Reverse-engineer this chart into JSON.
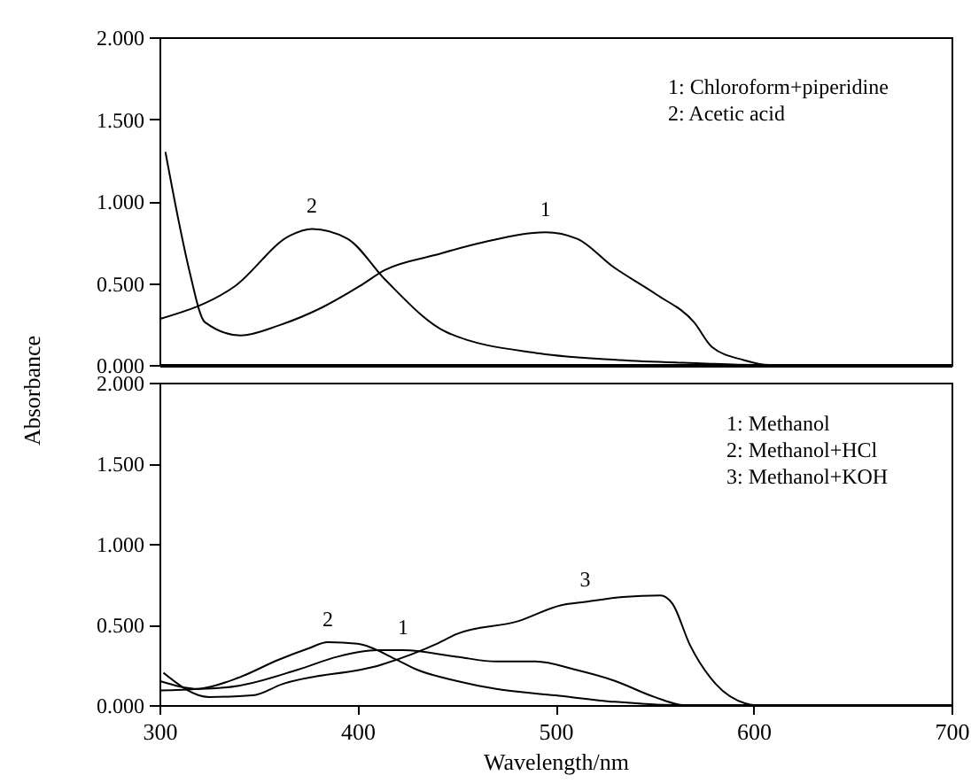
{
  "chart_data": [
    {
      "type": "line",
      "ylabel": "Absorbance",
      "xlim": [
        300,
        700
      ],
      "ylim": [
        0,
        2
      ],
      "yticks": [
        {
          "value": 0,
          "label": "0.000"
        },
        {
          "value": 0.5,
          "label": "0.500"
        },
        {
          "value": 1,
          "label": "1.000"
        },
        {
          "value": 1.5,
          "label": "1.500"
        },
        {
          "value": 2,
          "label": "2.000"
        }
      ],
      "tick_labels": "y",
      "grid": false,
      "series": [
        {
          "color": "#000000",
          "x": [
            303,
            310,
            315,
            323,
            341,
            360,
            382,
            401,
            414,
            439,
            464,
            495,
            511,
            529,
            551,
            570,
            579,
            595,
            608,
            700
          ],
          "values": [
            1.3,
            0.86,
            0.58,
            0.26,
            0.18,
            0.24,
            0.35,
            0.48,
            0.58,
            0.67,
            0.75,
            0.81,
            0.77,
            0.6,
            0.43,
            0.26,
            0.11,
            0.03,
            0,
            0
          ]
        },
        {
          "color": "#000000",
          "x": [
            300,
            338,
            366,
            377,
            395,
            414,
            445,
            492,
            532,
            573,
            600,
            700
          ],
          "values": [
            0.28,
            0.48,
            0.79,
            0.83,
            0.77,
            0.52,
            0.2,
            0.07,
            0.03,
            0.01,
            0,
            0
          ]
        }
      ],
      "annotations": [
        "1: Chloroform+piperidine",
        "2: Acetic acid",
        {
          "text": "2",
          "x": 377,
          "y": 0.83
        },
        {
          "text": "1",
          "x": 495,
          "y": 0.81
        }
      ]
    },
    {
      "type": "line",
      "xlabel": "Wavelength/nm",
      "xlim": [
        300,
        700
      ],
      "ylim": [
        0,
        2
      ],
      "xticks": [
        300,
        400,
        500,
        600,
        700
      ],
      "yticks": [
        {
          "value": 0,
          "label": "0.000"
        },
        {
          "value": 0.5,
          "label": "0.500"
        },
        {
          "value": 1,
          "label": "1.000"
        },
        {
          "value": 1.5,
          "label": "1.500"
        },
        {
          "value": 2,
          "label": "2.000"
        }
      ],
      "grid": false,
      "series": [
        {
          "color": "#000000",
          "x": [
            300,
            320,
            340,
            370,
            390,
            410,
            423,
            450,
            470,
            490,
            510,
            530,
            550,
            565,
            700
          ],
          "values": [
            0.15,
            0.1,
            0.12,
            0.22,
            0.3,
            0.34,
            0.34,
            0.3,
            0.27,
            0.27,
            0.22,
            0.15,
            0.05,
            0,
            0
          ]
        },
        {
          "color": "#000000",
          "x": [
            300,
            320,
            340,
            360,
            375,
            385,
            400,
            420,
            430,
            450,
            470,
            500,
            530,
            560,
            700
          ],
          "values": [
            0.09,
            0.1,
            0.17,
            0.28,
            0.35,
            0.39,
            0.38,
            0.28,
            0.22,
            0.15,
            0.1,
            0.06,
            0.02,
            0,
            0
          ]
        },
        {
          "color": "#000000",
          "x": [
            302,
            325,
            347,
            362,
            412,
            440,
            450,
            481,
            503,
            515,
            534,
            553,
            559,
            568,
            581,
            596,
            600,
            700
          ],
          "values": [
            0.2,
            0.05,
            0.06,
            0.13,
            0.25,
            0.38,
            0.44,
            0.52,
            0.62,
            0.64,
            0.67,
            0.68,
            0.63,
            0.37,
            0.13,
            0.01,
            0,
            0
          ]
        }
      ],
      "annotations": [
        "1: Methanol",
        "2: Methanol+HCl",
        "3: Methanol+KOH",
        {
          "text": "2",
          "x": 385,
          "y": 0.39
        },
        {
          "text": "1",
          "x": 423,
          "y": 0.34
        },
        {
          "text": "3",
          "x": 515,
          "y": 0.64
        }
      ]
    }
  ]
}
